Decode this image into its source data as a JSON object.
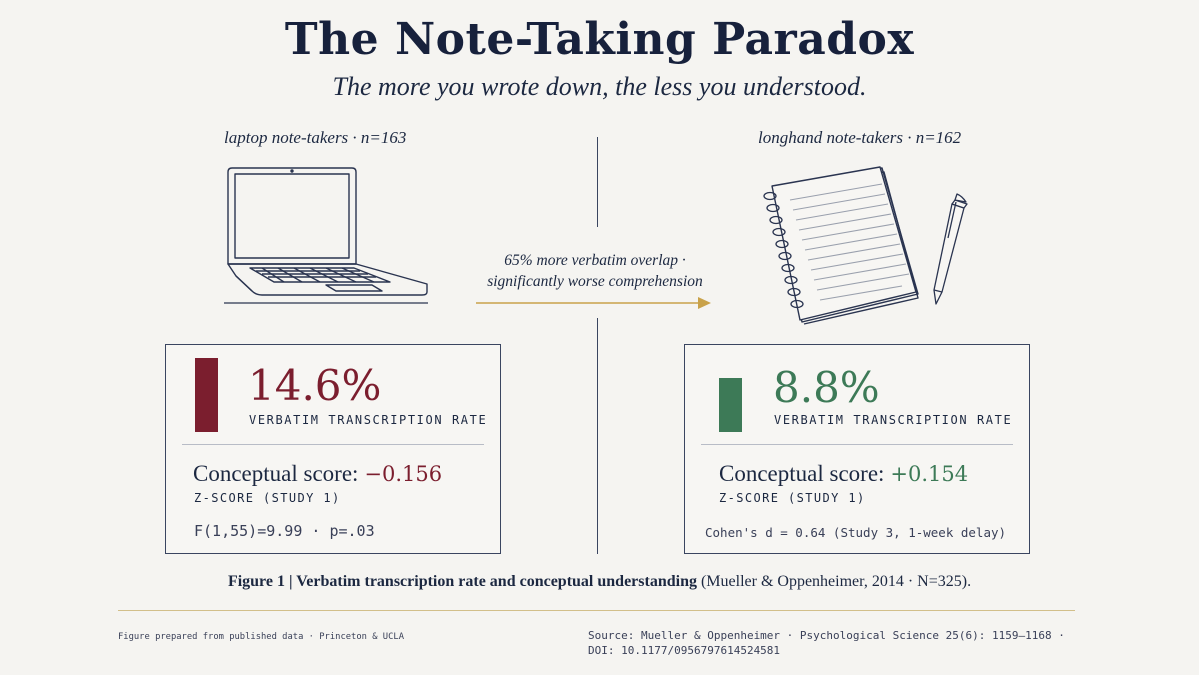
{
  "header": {
    "title": "The Note-Taking Paradox",
    "subtitle": "The more you wrote down, the less you understood."
  },
  "groups": {
    "left": {
      "label": "laptop note-takers · n=163",
      "icon": "laptop-icon",
      "rate_value": "14.6%",
      "rate_fraction": 0.146,
      "rate_label": "VERBATIM TRANSCRIPTION RATE",
      "score_label": "Conceptual score:",
      "score_value": "−0.156",
      "score_sub": "Z-SCORE (STUDY 1)",
      "stat": "F(1,55)=9.99 · p=.03",
      "color": "#7b1e2e"
    },
    "right": {
      "label": "longhand note-takers · n=162",
      "icon": "notebook-and-pen-icon",
      "rate_value": "8.8%",
      "rate_fraction": 0.088,
      "rate_label": "VERBATIM TRANSCRIPTION RATE",
      "score_label": "Conceptual score:",
      "score_value": "+0.154",
      "score_sub": "Z-SCORE (STUDY 1)",
      "stat": "Cohen's d = 0.64 (Study 3, 1-week delay)",
      "color": "#3d7a57"
    }
  },
  "middle": {
    "line1": "65% more verbatim overlap ·",
    "line2": "significantly worse comprehension",
    "arrow_color": "#c9a24a"
  },
  "caption": {
    "label": "Figure 1  |  Verbatim transcription rate and conceptual understanding",
    "rest": " (Mueller & Oppenheimer, 2014 · N=325)."
  },
  "footer": {
    "left": "Figure prepared from published data · Princeton & UCLA",
    "right_line1": "Source: Mueller & Oppenheimer · Psychological Science 25(6): 1159–1168 ·",
    "right_line2": "DOI: 10.1177/0956797614524581"
  }
}
